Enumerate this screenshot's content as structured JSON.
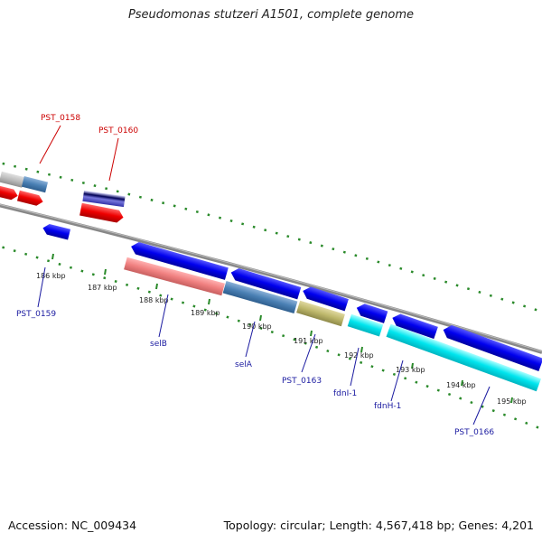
{
  "title": "Pseudomonas stutzeri A1501, complete genome",
  "footer": {
    "accession": "Accession: NC_009434",
    "topology": "Topology: circular; Length: 4,567,418 bp; Genes: 4,201"
  },
  "ticks": [
    "186 kbp",
    "187 kbp",
    "188 kbp",
    "189 kbp",
    "190 kbp",
    "191 kbp",
    "192 kbp",
    "193 kbp",
    "194 kbp",
    "195 kbp"
  ],
  "labels_top": [
    "PST_0158",
    "PST_0160"
  ],
  "labels_bottom": [
    "PST_0159",
    "selB",
    "selA",
    "PST_0163",
    "fdnI-1",
    "fdnH-1",
    "PST_0166"
  ],
  "colors": {
    "top_label": "#cc0000",
    "bottom_label": "#1a1aa0",
    "axis": "#888888",
    "dots": "#2a8a2a",
    "forward_gene": "#0000ee",
    "reverse_gene": "#ee0000",
    "cyan_gene": "#00e5ee"
  }
}
